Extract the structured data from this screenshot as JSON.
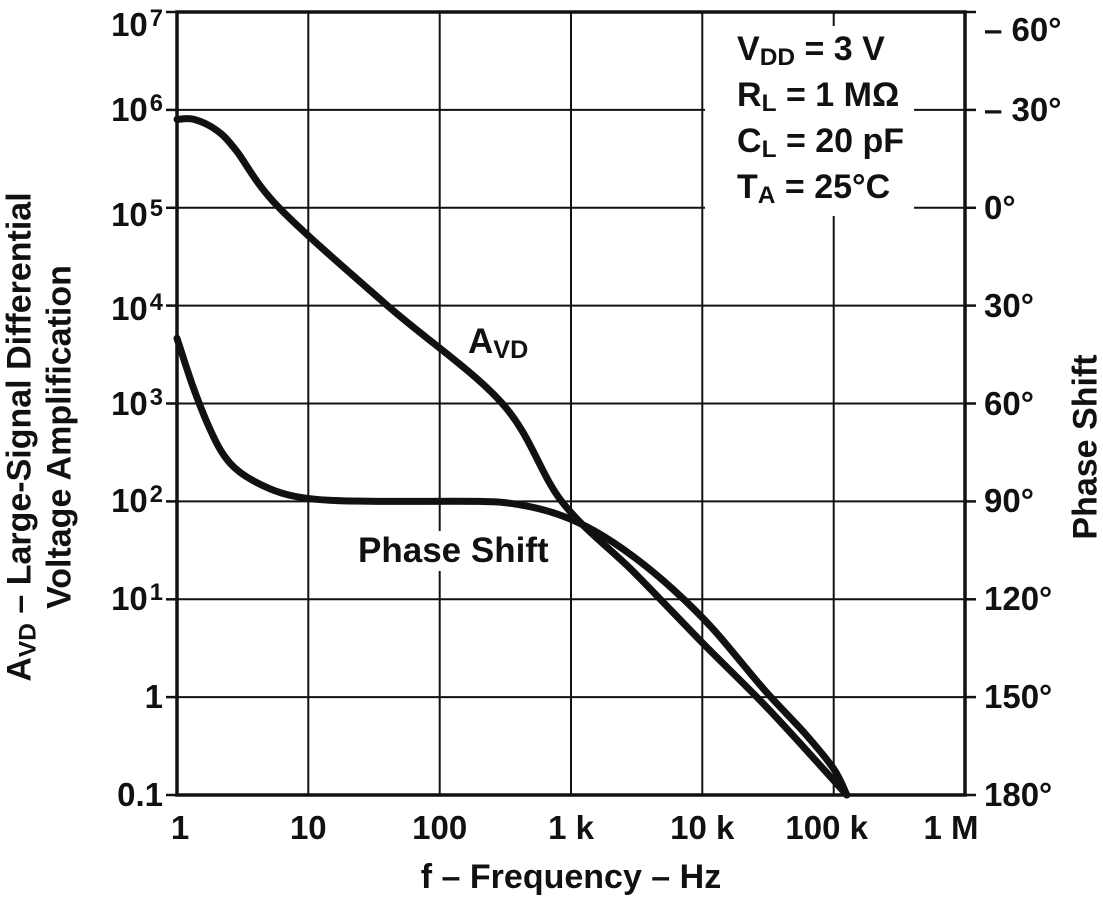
{
  "figure": {
    "x_axis": {
      "title": "f – Frequency – Hz",
      "ticks": [
        "1",
        "10",
        "100",
        "1 k",
        "10 k",
        "100 k",
        "1 M"
      ]
    },
    "y_left": {
      "title_line1": {
        "sym": "A",
        "sub": "VD",
        "rest": " – Large-Signal Differential"
      },
      "title_line2": "Voltage Amplification",
      "ticks": [
        {
          "base": "10",
          "exp": "7"
        },
        {
          "base": "10",
          "exp": "6"
        },
        {
          "base": "10",
          "exp": "5"
        },
        {
          "base": "10",
          "exp": "4"
        },
        {
          "base": "10",
          "exp": "3"
        },
        {
          "base": "10",
          "exp": "2"
        },
        {
          "base": "10",
          "exp": "1"
        },
        {
          "base": "1",
          "exp": ""
        },
        {
          "base": "0.1",
          "exp": ""
        }
      ]
    },
    "y_right": {
      "title": "Phase Shift",
      "ticks": [
        "– 60°",
        "– 30°",
        "0°",
        "30°",
        "60°",
        "90°",
        "120°",
        "150°",
        "180°"
      ]
    },
    "annotation": {
      "lines": [
        {
          "sym": "V",
          "sub": "DD",
          "rest": " = 3 V"
        },
        {
          "sym": "R",
          "sub": "L",
          "rest": " = 1 MΩ"
        },
        {
          "sym": "C",
          "sub": "L",
          "rest": " = 20 pF"
        },
        {
          "sym": "T",
          "sub": "A",
          "rest": " = 25°C"
        }
      ]
    },
    "curve_labels": {
      "avd": {
        "sym": "A",
        "sub": "VD"
      },
      "phase": "Phase Shift"
    },
    "colors": {
      "ink": "#111111",
      "background": "#ffffff"
    }
  },
  "chart_data": {
    "type": "line",
    "xlabel": "f – Frequency – Hz",
    "x_scale": "log",
    "x_range_hz": [
      1,
      1000000
    ],
    "y_left_label": "AVD – Large-Signal Differential Voltage Amplification",
    "y_left_scale": "log",
    "y_left_range": [
      0.1,
      10000000
    ],
    "y_right_label": "Phase Shift",
    "y_right_range_deg": [
      -60,
      180
    ],
    "y_right_tick_step_deg": 30,
    "grid": "major decade gridlines on, both axes",
    "legend_position": "inline curve labels",
    "conditions": [
      "VDD = 3 V",
      "RL = 1 MΩ",
      "CL = 20 pF",
      "TA = 25°C"
    ],
    "series": [
      {
        "name": "AVD",
        "axis": "left",
        "units": "V/V",
        "points": [
          [
            1,
            800000
          ],
          [
            1.35,
            800000
          ],
          [
            2,
            620000
          ],
          [
            2.8,
            390000
          ],
          [
            6,
            100000
          ],
          [
            40,
            10000
          ],
          [
            300,
            1000
          ],
          [
            850,
            100
          ],
          [
            3000,
            19
          ],
          [
            10000,
            3.6
          ],
          [
            33000,
            0.72
          ],
          [
            126000,
            0.1
          ]
        ]
      },
      {
        "name": "Phase Shift",
        "axis": "right",
        "units": "deg",
        "points": [
          [
            1,
            40
          ],
          [
            1.3,
            54
          ],
          [
            1.7,
            66
          ],
          [
            2.2,
            75
          ],
          [
            3,
            81
          ],
          [
            5,
            86
          ],
          [
            8,
            88.5
          ],
          [
            15,
            89.7
          ],
          [
            40,
            90
          ],
          [
            200,
            90
          ],
          [
            400,
            91
          ],
          [
            800,
            94
          ],
          [
            1500,
            99
          ],
          [
            3000,
            107
          ],
          [
            6000,
            117
          ],
          [
            12000,
            129
          ],
          [
            30000,
            148
          ],
          [
            60000,
            161
          ],
          [
            100000,
            172
          ],
          [
            126000,
            180
          ]
        ]
      }
    ]
  }
}
